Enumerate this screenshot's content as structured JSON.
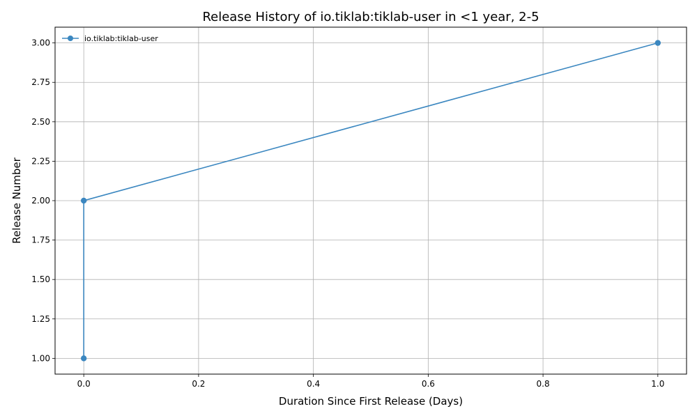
{
  "chart_data": {
    "type": "line",
    "title": "Release History of io.tiklab:tiklab-user in <1 year, 2-5",
    "xlabel": "Duration Since First Release (Days)",
    "ylabel": "Release Number",
    "xlim": [
      -0.05,
      1.05
    ],
    "ylim": [
      0.9,
      3.1
    ],
    "xticks": [
      0.0,
      0.2,
      0.4,
      0.6,
      0.8,
      1.0
    ],
    "xtick_labels": [
      "0.0",
      "0.2",
      "0.4",
      "0.6",
      "0.8",
      "1.0"
    ],
    "yticks": [
      1.0,
      1.25,
      1.5,
      1.75,
      2.0,
      2.25,
      2.5,
      2.75,
      3.0
    ],
    "ytick_labels": [
      "1.00",
      "1.25",
      "1.50",
      "1.75",
      "2.00",
      "2.25",
      "2.50",
      "2.75",
      "3.00"
    ],
    "grid": true,
    "legend_position": "top-left",
    "series": [
      {
        "name": "io.tiklab:tiklab-user",
        "color": "#3b87c0",
        "marker": "circle",
        "x": [
          0,
          0,
          1
        ],
        "y": [
          1,
          2,
          3
        ]
      }
    ]
  }
}
